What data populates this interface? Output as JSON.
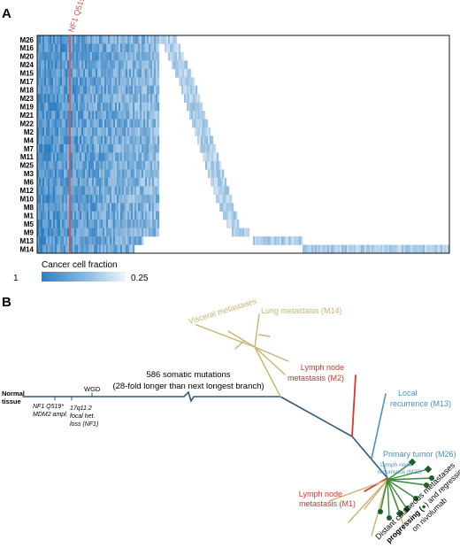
{
  "panel_a": {
    "label": "A",
    "mutation_label": "NF1 Q519*",
    "rows": [
      "M26",
      "M16",
      "M20",
      "M24",
      "M15",
      "M17",
      "M18",
      "M23",
      "M19",
      "M21",
      "M22",
      "M2",
      "M4",
      "M7",
      "M11",
      "M25",
      "M3",
      "M6",
      "M12",
      "M10",
      "M8",
      "M1",
      "M5",
      "M9",
      "M13",
      "M14"
    ],
    "legend_title": "Cancer cell fraction",
    "legend_min": "1",
    "legend_max": "0.25",
    "colors": {
      "high": "#2f7fc1",
      "low": "#e8f2fb",
      "marker": "#d9534f"
    }
  },
  "panel_b": {
    "label": "B",
    "normal_tissue": [
      "Normal",
      "tissue"
    ],
    "trunk_events": {
      "nf1": "NF1 Q519*",
      "mdm2": "MDM2 ampl.",
      "loss": [
        "17q11.2",
        "focal het.",
        "loss (NF1)"
      ],
      "wgd": "WGD"
    },
    "trunk_annotation": [
      "586 somatic mutations",
      "(28-fold longer than next longest branch)"
    ],
    "visceral": "Visceral metastases",
    "lung": "Lung metastasis (M14)",
    "lymph_m2": [
      "Lymph node",
      "metastasis (M2)"
    ],
    "local": [
      "Local",
      "recurrence (M13)"
    ],
    "primary": "Primary tumor (M26)",
    "lymph_m23": [
      "Lymph node",
      "recurrence (M23)"
    ],
    "lymph_m1": [
      "Lymph node",
      "metastasis (M1)"
    ],
    "distant": [
      "Distant cutaneous metastases",
      "progressing (",
      ") and regressing (",
      ")",
      "on nivolumab"
    ],
    "colors": {
      "trunk": "#2e5a7f",
      "visceral": "#c8b46e",
      "lymph": "#d9342b",
      "blue": "#4a90c2",
      "green": "#3a8a3a",
      "darkgreen": "#1f5e2a"
    }
  }
}
